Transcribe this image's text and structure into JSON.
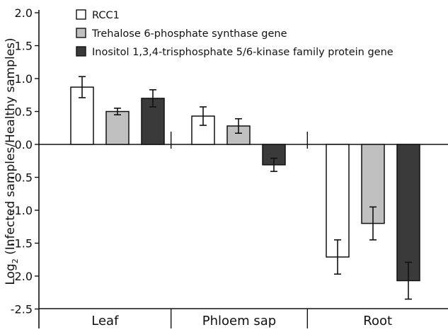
{
  "chart_data": {
    "type": "bar",
    "title": "",
    "xlabel": "",
    "ylabel": {
      "prefix": "Log",
      "subscript": "2",
      "suffix": " (Infected samples/Healthy samples)"
    },
    "ylim": [
      -2.5,
      2.0
    ],
    "yticks": [
      "2.0",
      "1.5",
      "1.0",
      "0.5",
      "0.0",
      "-0.5",
      "-1.0",
      "-1.5",
      "-2.0",
      "-2.5"
    ],
    "categories": [
      "Leaf",
      "Phloem sap",
      "Root"
    ],
    "series": [
      {
        "name": "RCC1",
        "color": "#ffffff",
        "values": [
          0.87,
          0.43,
          -1.71
        ],
        "errors": [
          0.16,
          0.14,
          0.26
        ]
      },
      {
        "name": "Trehalose 6-phosphate synthase gene",
        "color": "#c0c0c0",
        "values": [
          0.5,
          0.28,
          -1.2
        ],
        "errors": [
          0.05,
          0.11,
          0.25
        ]
      },
      {
        "name": "Inositol 1,3,4-trisphosphate 5/6-kinase family protein gene",
        "color": "#3a3a3a",
        "values": [
          0.7,
          -0.31,
          -2.07
        ],
        "errors": [
          0.13,
          0.1,
          0.28
        ]
      }
    ],
    "grid": false,
    "legend": "top-left"
  }
}
